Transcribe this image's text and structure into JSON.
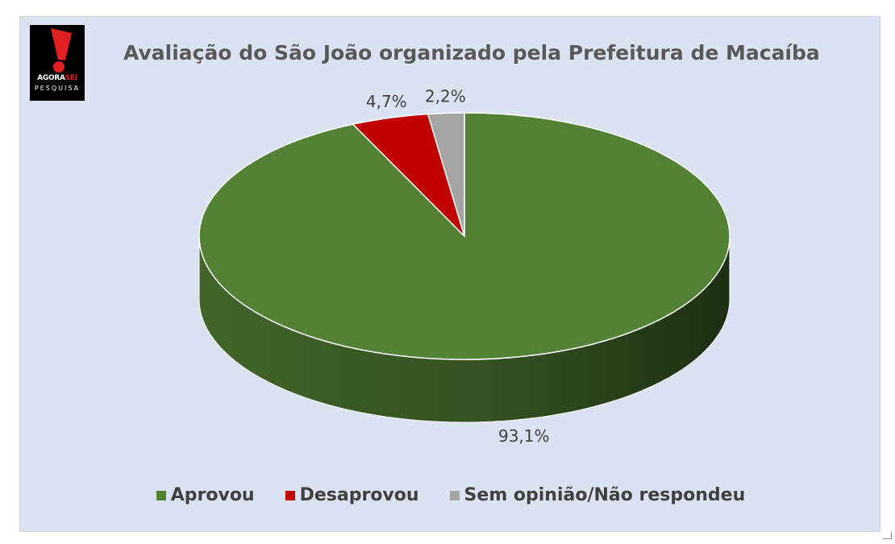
{
  "logo": {
    "line1_a": "AGORA",
    "line1_b": "SEI",
    "line2": "PESQUISA"
  },
  "chart_data": {
    "type": "pie",
    "title": "Avaliação do São João organizado pela Prefeitura de Macaíba",
    "categories": [
      "Aprovou",
      "Desaprovou",
      "Sem opinião/Não respondeu"
    ],
    "values": [
      93.1,
      4.7,
      2.2
    ],
    "labels": [
      "93,1%",
      "4,7%",
      "2,2%"
    ],
    "colors": [
      "#548235",
      "#c00000",
      "#a5a5a5"
    ],
    "legend_position": "bottom",
    "style": "3d"
  }
}
